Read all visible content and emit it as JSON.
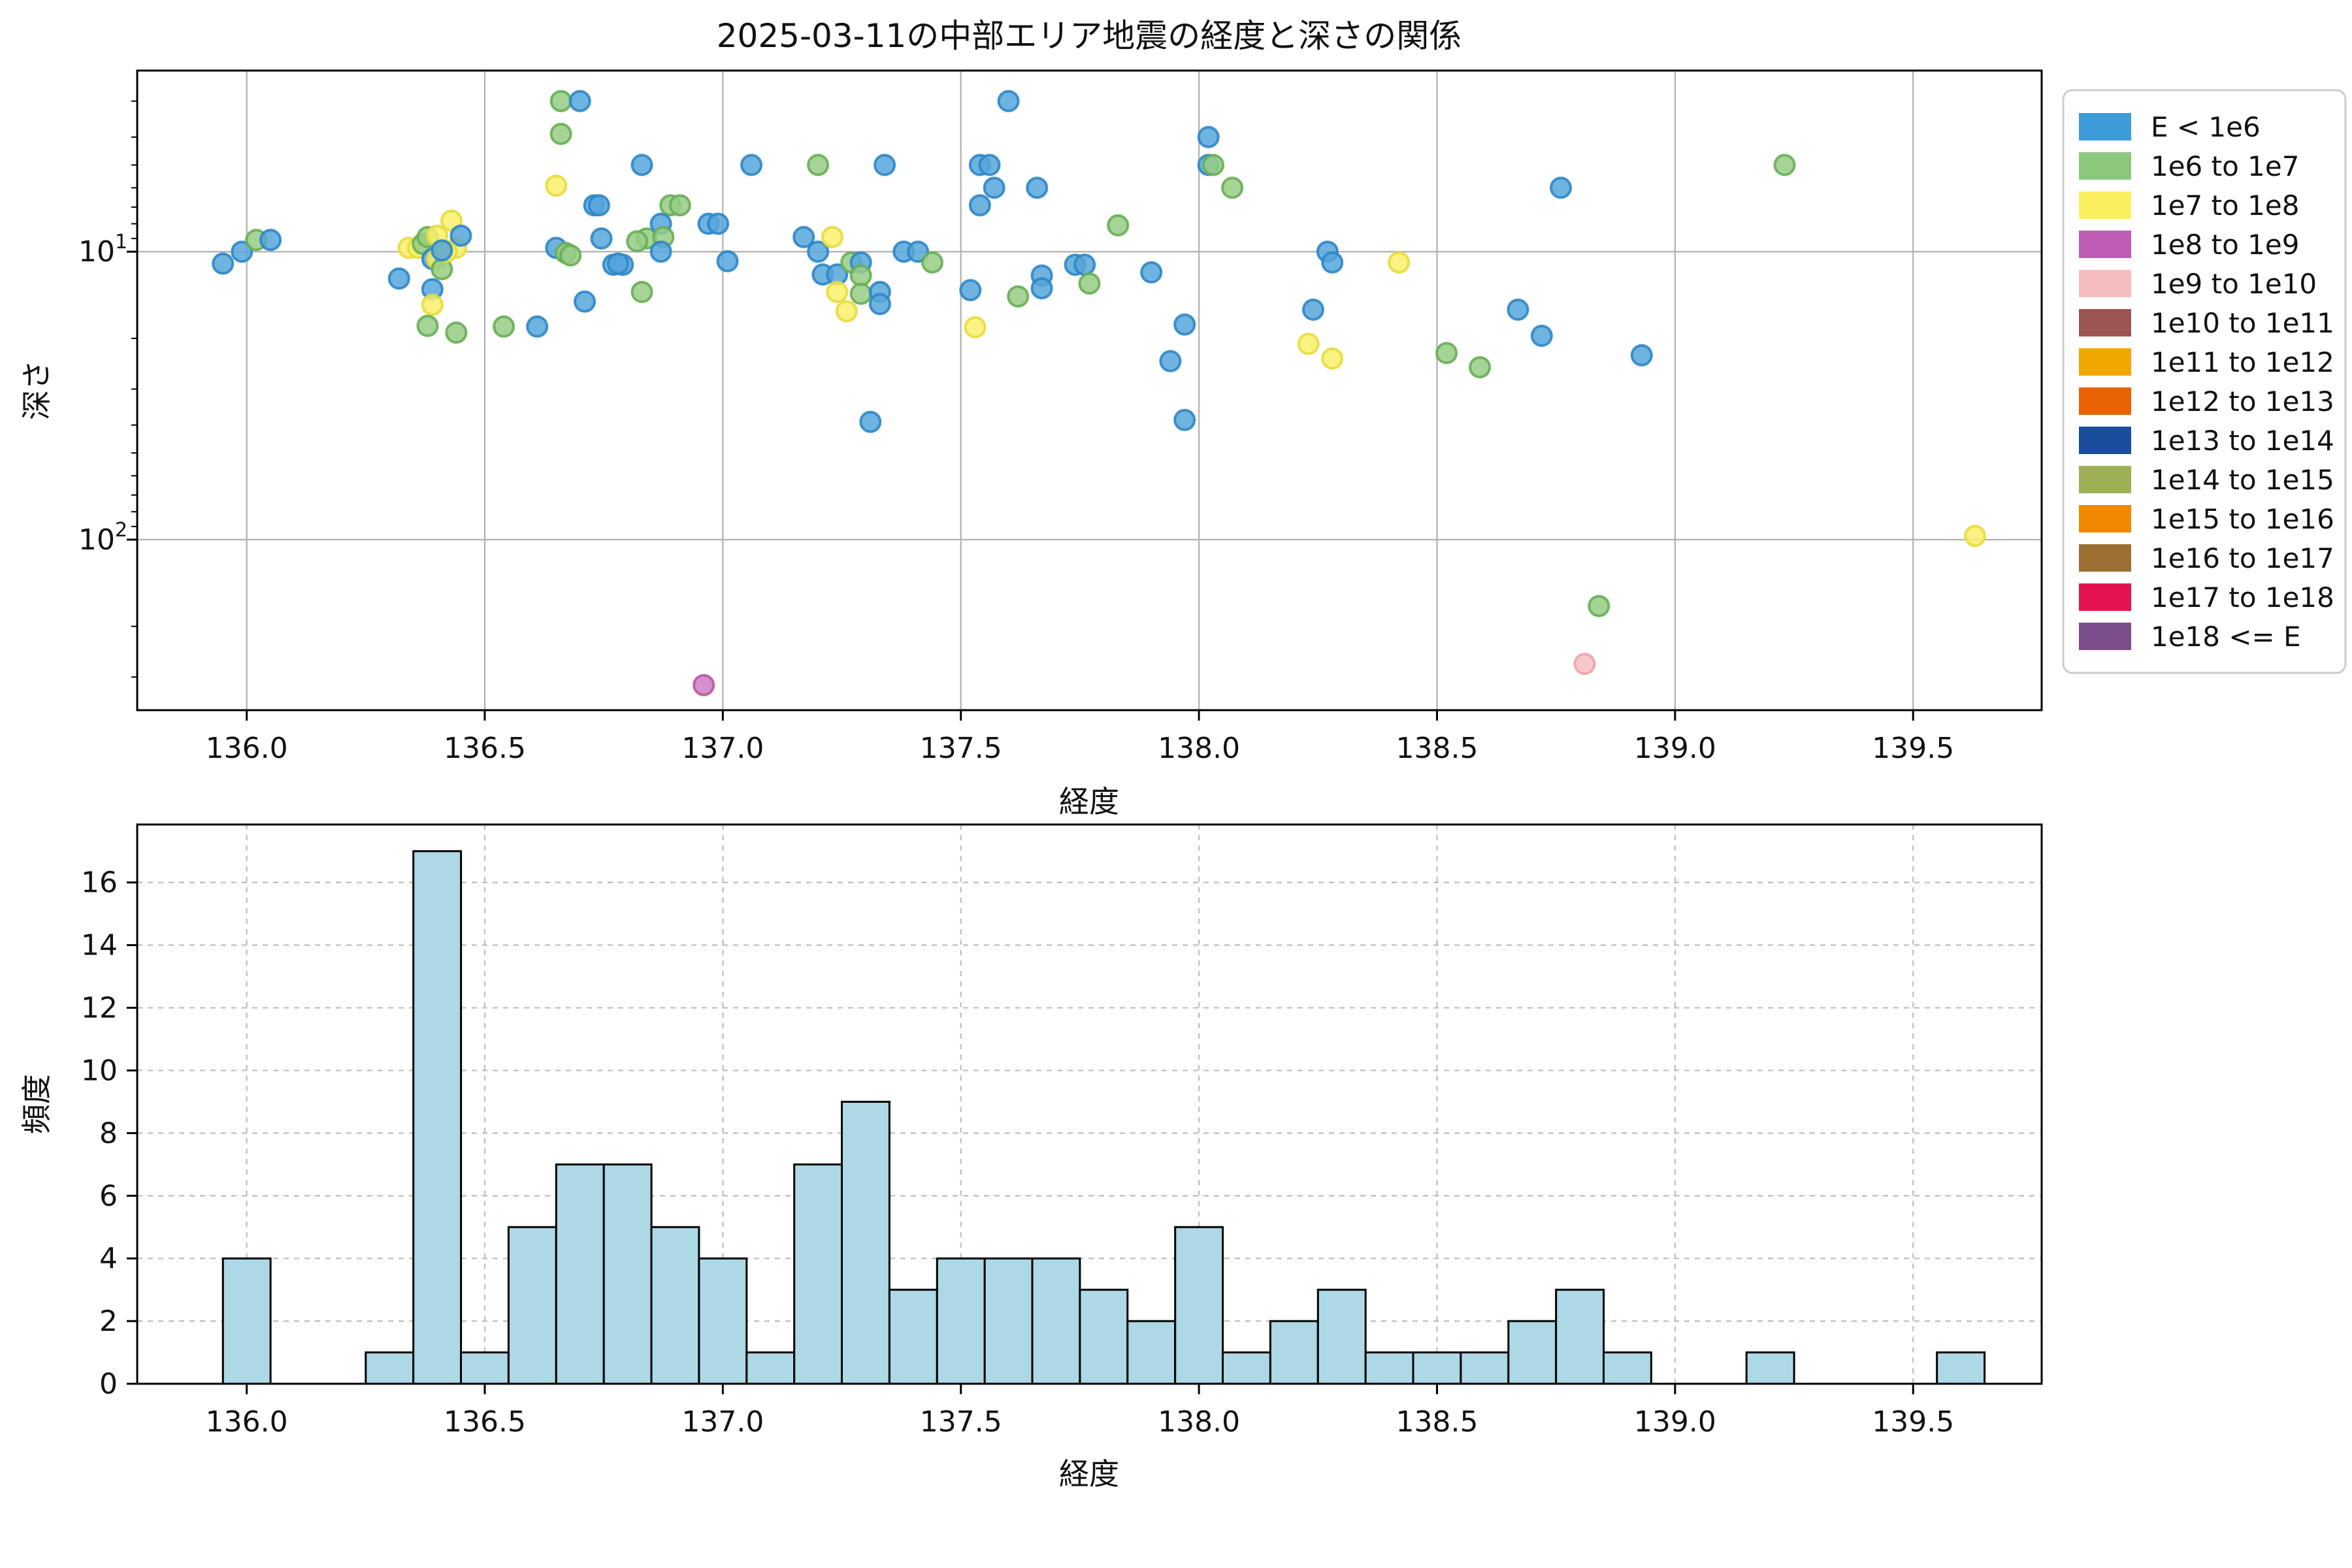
{
  "title": "2025-03-11の中部エリア地震の経度と深さの関係",
  "energy_legend": {
    "items": [
      {
        "label": "E < 1e6",
        "color": "#3D9BD9"
      },
      {
        "label": "1e6 to 1e7",
        "color": "#8CC87C"
      },
      {
        "label": "1e7 to 1e8",
        "color": "#FAF05F"
      },
      {
        "label": "1e8 to 1e9",
        "color": "#BF5CB4"
      },
      {
        "label": "1e9 to 1e10",
        "color": "#F5BDC0"
      },
      {
        "label": "1e10 to 1e11",
        "color": "#9D5454"
      },
      {
        "label": "1e11 to 1e12",
        "color": "#F0A800"
      },
      {
        "label": "1e12 to 1e13",
        "color": "#E96204"
      },
      {
        "label": "1e13 to 1e14",
        "color": "#1C4C9C"
      },
      {
        "label": "1e14 to 1e15",
        "color": "#9DB056"
      },
      {
        "label": "1e15 to 1e16",
        "color": "#F08800"
      },
      {
        "label": "1e16 to 1e17",
        "color": "#9C7032"
      },
      {
        "label": "1e17 to 1e18",
        "color": "#E4134F"
      },
      {
        "label": "1e18 <= E",
        "color": "#7C4D8B"
      }
    ]
  },
  "chart_data": [
    {
      "type": "scatter",
      "title": "2025-03-11の中部エリア地震の経度と深さの関係",
      "xlabel": "経度",
      "ylabel": "深さ",
      "xlim": [
        135.77,
        139.77
      ],
      "xticks": [
        136.0,
        136.5,
        137.0,
        137.5,
        138.0,
        138.5,
        139.0,
        139.5
      ],
      "y_scale": "log-inverted",
      "ylim": [
        2.35,
        391
      ],
      "yticks": [
        {
          "value": 10,
          "base": "10",
          "exp": "1"
        },
        {
          "value": 100,
          "base": "10",
          "exp": "2"
        }
      ],
      "y_minor_ticks": [
        3,
        4,
        5,
        6,
        7,
        8,
        9,
        20,
        30,
        40,
        50,
        60,
        70,
        80,
        90,
        200,
        300
      ],
      "grid": "solid",
      "point_styles": [
        {
          "class": "E < 1e6",
          "fill": "#56A6DB",
          "stroke": "#2E86C8"
        },
        {
          "class": "1e6 to 1e7",
          "fill": "#97CD84",
          "stroke": "#68AE55"
        },
        {
          "class": "1e7 to 1e8",
          "fill": "#F9F06B",
          "stroke": "#E6DC3E"
        },
        {
          "class": "1e8 to 1e9",
          "fill": "#CC7EC3",
          "stroke": "#BA55AC"
        },
        {
          "class": "1e9 to 1e10",
          "fill": "#F6C0C3",
          "stroke": "#F0A2A8"
        }
      ],
      "points": [
        [
          135.95,
          11.0,
          0
        ],
        [
          135.99,
          10.0,
          0
        ],
        [
          136.02,
          9.1,
          1
        ],
        [
          136.05,
          9.1,
          0
        ],
        [
          136.32,
          12.4,
          0
        ],
        [
          136.34,
          9.7,
          2
        ],
        [
          136.36,
          9.7,
          2
        ],
        [
          136.37,
          9.4,
          1
        ],
        [
          136.38,
          8.9,
          1
        ],
        [
          136.4,
          8.8,
          2
        ],
        [
          136.43,
          7.8,
          2
        ],
        [
          136.39,
          10.6,
          0
        ],
        [
          136.4,
          10.6,
          2
        ],
        [
          136.41,
          11.5,
          1
        ],
        [
          136.44,
          9.7,
          2
        ],
        [
          136.45,
          8.8,
          0
        ],
        [
          136.39,
          13.5,
          0
        ],
        [
          136.39,
          15.3,
          2
        ],
        [
          136.38,
          18.1,
          1
        ],
        [
          136.44,
          19.1,
          1
        ],
        [
          136.42,
          10.0,
          2
        ],
        [
          136.41,
          9.9,
          0
        ],
        [
          136.54,
          18.2,
          1
        ],
        [
          136.61,
          18.2,
          0
        ],
        [
          136.65,
          9.7,
          0
        ],
        [
          136.66,
          3.0,
          1
        ],
        [
          136.66,
          3.9,
          1
        ],
        [
          136.65,
          5.9,
          2
        ],
        [
          136.7,
          3.0,
          0
        ],
        [
          136.71,
          14.9,
          0
        ],
        [
          136.73,
          6.9,
          0
        ],
        [
          136.74,
          6.9,
          0
        ],
        [
          136.745,
          9.0,
          0
        ],
        [
          136.67,
          10.1,
          1
        ],
        [
          136.68,
          10.3,
          1
        ],
        [
          136.77,
          11.1,
          0
        ],
        [
          136.79,
          11.1,
          0
        ],
        [
          136.83,
          13.8,
          1
        ],
        [
          136.83,
          5.0,
          0
        ],
        [
          136.84,
          9.0,
          1
        ],
        [
          136.78,
          11.0,
          0
        ],
        [
          136.82,
          9.2,
          1
        ],
        [
          136.89,
          6.9,
          1
        ],
        [
          136.91,
          6.9,
          1
        ],
        [
          136.87,
          8.0,
          0
        ],
        [
          136.875,
          8.9,
          1
        ],
        [
          136.87,
          10.0,
          0
        ],
        [
          136.97,
          8.0,
          0
        ],
        [
          136.99,
          8.0,
          0
        ],
        [
          136.96,
          320,
          3
        ],
        [
          137.01,
          10.8,
          0
        ],
        [
          137.06,
          5.0,
          0
        ],
        [
          137.17,
          8.9,
          0
        ],
        [
          137.2,
          10.0,
          0
        ],
        [
          137.2,
          5.0,
          1
        ],
        [
          137.21,
          12.0,
          0
        ],
        [
          137.23,
          8.9,
          2
        ],
        [
          137.24,
          12.0,
          0
        ],
        [
          137.24,
          13.8,
          2
        ],
        [
          137.26,
          16.1,
          2
        ],
        [
          137.27,
          10.9,
          1
        ],
        [
          137.29,
          10.9,
          0
        ],
        [
          137.29,
          12.1,
          1
        ],
        [
          137.29,
          14.0,
          1
        ],
        [
          137.31,
          39.0,
          0
        ],
        [
          137.33,
          13.8,
          0
        ],
        [
          137.33,
          15.2,
          0
        ],
        [
          137.34,
          5.0,
          0
        ],
        [
          137.38,
          10.0,
          0
        ],
        [
          137.41,
          10.0,
          0
        ],
        [
          137.44,
          10.9,
          1
        ],
        [
          137.52,
          13.6,
          0
        ],
        [
          137.54,
          6.9,
          0
        ],
        [
          137.54,
          5.0,
          0
        ],
        [
          137.53,
          18.3,
          2
        ],
        [
          137.56,
          5.0,
          0
        ],
        [
          137.57,
          6.0,
          0
        ],
        [
          137.6,
          3.0,
          0
        ],
        [
          137.62,
          14.3,
          1
        ],
        [
          137.66,
          6.0,
          0
        ],
        [
          137.67,
          12.1,
          0
        ],
        [
          137.67,
          13.4,
          0
        ],
        [
          137.74,
          11.1,
          0
        ],
        [
          137.76,
          11.1,
          0
        ],
        [
          137.77,
          12.9,
          1
        ],
        [
          137.83,
          8.1,
          1
        ],
        [
          137.9,
          11.8,
          0
        ],
        [
          137.94,
          24.0,
          0
        ],
        [
          137.97,
          17.9,
          0
        ],
        [
          137.97,
          38.4,
          0
        ],
        [
          138.02,
          4.0,
          0
        ],
        [
          138.02,
          5.0,
          0
        ],
        [
          138.03,
          5.0,
          1
        ],
        [
          138.07,
          6.0,
          1
        ],
        [
          138.24,
          15.9,
          0
        ],
        [
          138.23,
          20.9,
          2
        ],
        [
          138.27,
          10.0,
          0
        ],
        [
          138.28,
          10.9,
          0
        ],
        [
          138.28,
          23.5,
          2
        ],
        [
          138.42,
          10.9,
          2
        ],
        [
          138.52,
          22.5,
          1
        ],
        [
          138.59,
          25.2,
          1
        ],
        [
          138.67,
          15.9,
          0
        ],
        [
          138.72,
          19.6,
          0
        ],
        [
          138.76,
          6.0,
          0
        ],
        [
          138.81,
          270,
          4
        ],
        [
          138.84,
          170,
          1
        ],
        [
          138.93,
          22.9,
          0
        ],
        [
          139.23,
          5.0,
          1
        ],
        [
          139.63,
          97,
          2
        ]
      ]
    },
    {
      "type": "bar",
      "xlabel": "経度",
      "ylabel": "頻度",
      "xlim": [
        135.77,
        139.77
      ],
      "xticks": [
        136.0,
        136.5,
        137.0,
        137.5,
        138.0,
        138.5,
        139.0,
        139.5
      ],
      "ylim": [
        0,
        17.85
      ],
      "yticks": [
        0,
        2,
        4,
        6,
        8,
        10,
        12,
        14,
        16
      ],
      "grid": "dashed",
      "bin_start": 135.95,
      "bin_width": 0.1,
      "counts": [
        4,
        0,
        0,
        1,
        17,
        1,
        5,
        7,
        7,
        5,
        4,
        1,
        7,
        9,
        3,
        4,
        4,
        4,
        3,
        2,
        5,
        1,
        2,
        3,
        1,
        1,
        1,
        2,
        3,
        1,
        0,
        0,
        1,
        0,
        0,
        0,
        1
      ],
      "bar_fill": "#ADD8E6",
      "bar_edge": "#000000"
    }
  ],
  "styles": {
    "grid_color_solid": "#B0B0B0",
    "grid_color_dashed": "#BDBDBD",
    "spine_color": "#000000",
    "legend_border": "#CCCCCC",
    "legend_bg": "#FFFFFF",
    "text_color": "#111111"
  }
}
